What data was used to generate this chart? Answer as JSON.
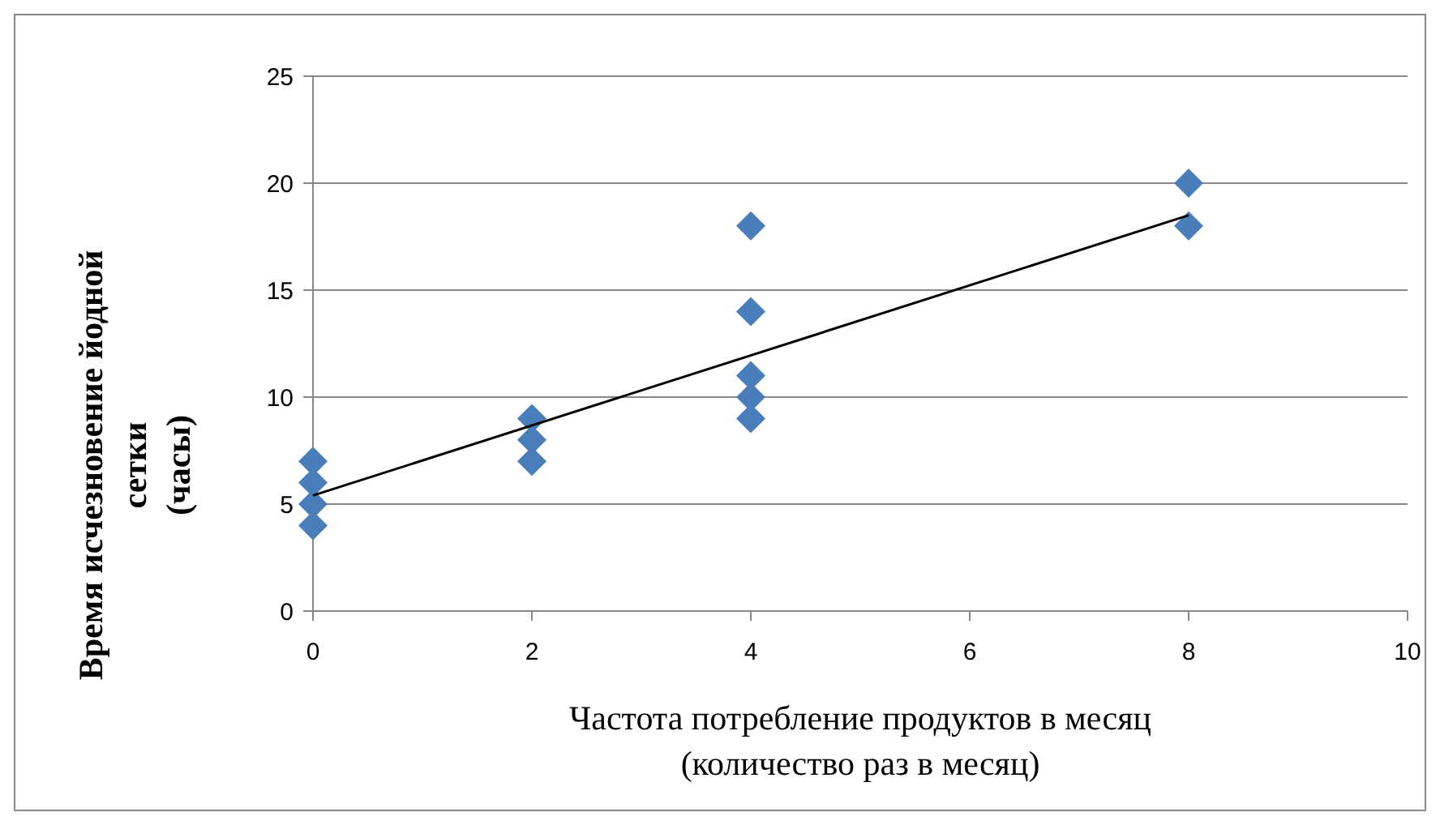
{
  "chart_data": {
    "type": "scatter",
    "xlabel": "Частота потребление продуктов в месяц\n(количество раз в месяц)",
    "ylabel": "Время исчезновение йодной\nсетки\n(часы)",
    "xlim": [
      0,
      10
    ],
    "xticks": [
      0,
      2,
      4,
      6,
      8,
      10
    ],
    "ylim": [
      0,
      25
    ],
    "yticks": [
      0,
      5,
      10,
      15,
      20,
      25
    ],
    "grid": "y",
    "series": [
      {
        "marker": "diamond",
        "color": "#4a7ebb",
        "x": [
          0,
          0,
          0,
          0,
          2,
          2,
          2,
          4,
          4,
          4,
          4,
          4,
          8,
          8
        ],
        "values": [
          7,
          6,
          5,
          4,
          9,
          8,
          7,
          18,
          14,
          11,
          10,
          9,
          20,
          18
        ]
      },
      {
        "type": "line",
        "marker": "none",
        "color": "#000000",
        "x": [
          0,
          8
        ],
        "values": [
          5.4,
          18.5
        ]
      }
    ]
  }
}
